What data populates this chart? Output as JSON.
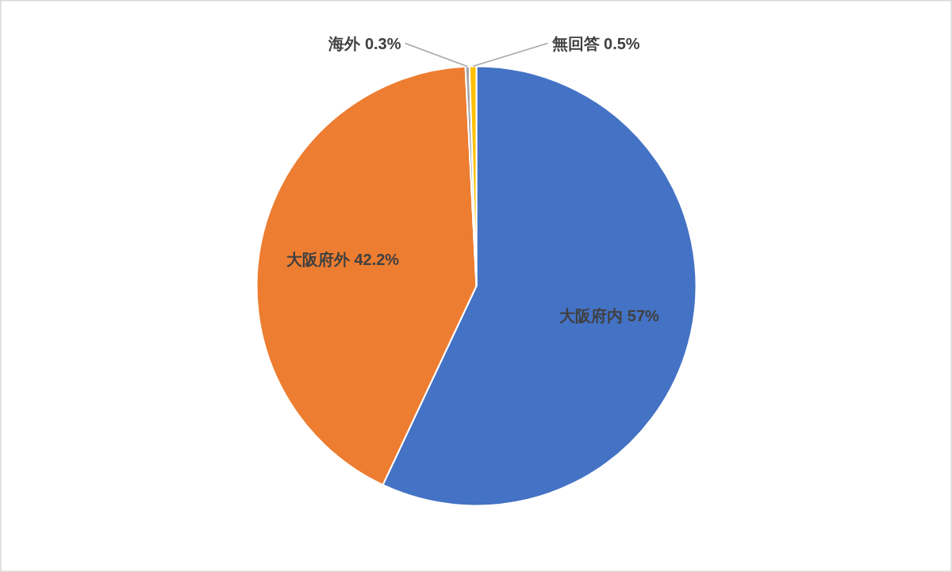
{
  "chart_data": {
    "type": "pie",
    "categories": [
      "大阪府内",
      "大阪府外",
      "海外",
      "無回答"
    ],
    "values": [
      57,
      42.2,
      0.3,
      0.5
    ],
    "value_labels": [
      "57%",
      "42.2%",
      "0.3%",
      "0.5%"
    ],
    "colors": [
      "#4472c4",
      "#ed7d31",
      "#a5a5a5",
      "#ffc000"
    ]
  }
}
